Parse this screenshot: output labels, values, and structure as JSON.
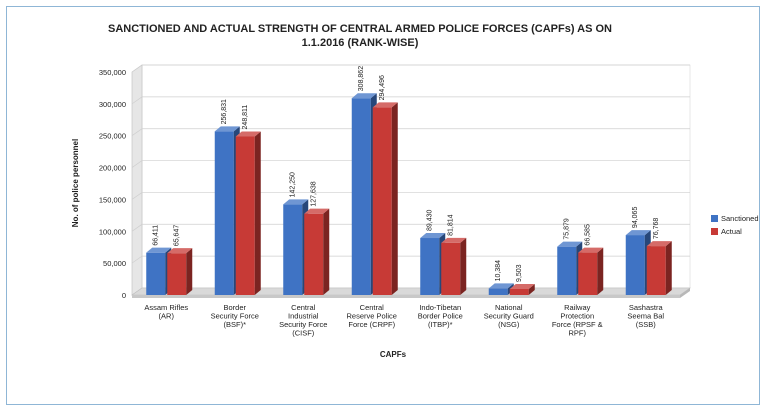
{
  "chart_data": {
    "type": "bar",
    "title": "SANCTIONED AND ACTUAL STRENGTH OF CENTRAL ARMED POLICE FORCES (CAPFs) AS ON 1.1.2016 (RANK-WISE)",
    "xlabel": "CAPFs",
    "ylabel": "No. of police personnel",
    "ylim": [
      0,
      350000
    ],
    "yticks": [
      "0",
      "50,000",
      "100,000",
      "150,000",
      "200,000",
      "250,000",
      "300,000",
      "350,000"
    ],
    "ytick_values": [
      0,
      50000,
      100000,
      150000,
      200000,
      250000,
      300000,
      350000
    ],
    "categories": [
      [
        "Assam Rifles",
        "(AR)"
      ],
      [
        "Border",
        "Security Force",
        "(BSF)*"
      ],
      [
        "Central",
        "Industrial",
        "Security Force",
        "(CISF)"
      ],
      [
        "Central",
        "Reserve Police",
        "Force (CRPF)"
      ],
      [
        "Indo-Tibetan",
        "Border Police",
        "(ITBP)*"
      ],
      [
        "National",
        "Security Guard",
        "(NSG)"
      ],
      [
        "Railway",
        "Protection",
        "Force (RPSF &",
        "RPF)"
      ],
      [
        "Sashastra",
        "Seema Bal",
        "(SSB)"
      ]
    ],
    "series": [
      {
        "name": "Sanctioned",
        "color": "#3f73c4",
        "values": [
          66411,
          256831,
          142250,
          308862,
          89430,
          10384,
          75879,
          94065
        ],
        "labels": [
          "66,411",
          "256,831",
          "142,250",
          "308,862",
          "89,430",
          "10,384",
          "75,879",
          "94,065"
        ]
      },
      {
        "name": "Actual",
        "color": "#c73a36",
        "values": [
          65647,
          248811,
          127638,
          294496,
          81814,
          9503,
          66585,
          76768
        ],
        "labels": [
          "65,647",
          "248,811",
          "127,638",
          "294,496",
          "81,814",
          "9,503",
          "66,585",
          "76,768"
        ]
      }
    ],
    "grid": true,
    "legend": "right"
  }
}
